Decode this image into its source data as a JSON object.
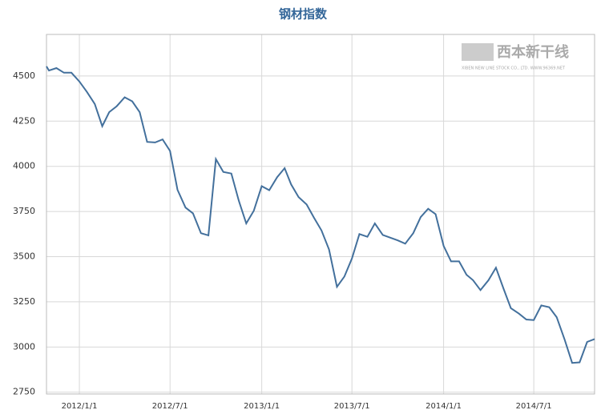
{
  "chart_data": {
    "type": "line",
    "title": "钢材指数",
    "watermark": "西本新干线",
    "watermark_subtitle": "XIBEN NEW LINE STOCK CO., LTD. WWW.96369.NET",
    "x": [
      "2011/10/27",
      "2011/11/1",
      "2011/11/16",
      "2011/12/1",
      "2011/12/16",
      "2012/1/1",
      "2012/1/16",
      "2012/2/1",
      "2012/2/16",
      "2012/3/1",
      "2012/3/16",
      "2012/4/1",
      "2012/4/16",
      "2012/5/1",
      "2012/5/16",
      "2012/6/1",
      "2012/6/16",
      "2012/7/1",
      "2012/7/16",
      "2012/8/1",
      "2012/8/16",
      "2012/9/1",
      "2012/9/16",
      "2012/10/1",
      "2012/10/16",
      "2012/11/1",
      "2012/11/16",
      "2012/12/1",
      "2012/12/16",
      "2013/1/1",
      "2013/1/16",
      "2013/2/1",
      "2013/2/16",
      "2013/3/1",
      "2013/3/16",
      "2013/4/1",
      "2013/4/16",
      "2013/5/1",
      "2013/5/16",
      "2013/6/1",
      "2013/6/16",
      "2013/7/1",
      "2013/7/16",
      "2013/8/1",
      "2013/8/16",
      "2013/9/1",
      "2013/9/16",
      "2013/10/1",
      "2013/10/16",
      "2013/11/1",
      "2013/11/16",
      "2013/12/1",
      "2013/12/16",
      "2014/1/1",
      "2014/1/16",
      "2014/2/1",
      "2014/2/16",
      "2014/3/1",
      "2014/3/16",
      "2014/4/1",
      "2014/4/16",
      "2014/5/1",
      "2014/5/16",
      "2014/6/1",
      "2014/6/16",
      "2014/7/1",
      "2014/7/16",
      "2014/8/1",
      "2014/8/16",
      "2014/9/1",
      "2014/9/16",
      "2014/10/1",
      "2014/10/16",
      "2014/10/31"
    ],
    "series": [
      {
        "name": "钢材指数",
        "color": "#43709c",
        "values": [
          4553,
          4530,
          4544,
          4518,
          4518,
          4470,
          4412,
          4345,
          4222,
          4300,
          4333,
          4382,
          4360,
          4300,
          4135,
          4132,
          4149,
          4085,
          3870,
          3772,
          3740,
          3630,
          3618,
          4040,
          3969,
          3960,
          3810,
          3684,
          3754,
          3890,
          3868,
          3940,
          3990,
          3900,
          3830,
          3789,
          3715,
          3645,
          3540,
          3333,
          3390,
          3490,
          3625,
          3610,
          3684,
          3620,
          3605,
          3590,
          3572,
          3630,
          3719,
          3765,
          3735,
          3560,
          3474,
          3474,
          3400,
          3370,
          3315,
          3370,
          3439,
          3325,
          3215,
          3185,
          3152,
          3149,
          3230,
          3220,
          3165,
          3040,
          2912,
          2915,
          3028,
          3044
        ]
      }
    ],
    "xlim": [
      "2011/10/27",
      "2014/10/31"
    ],
    "xticks": [
      "2012/1/1",
      "2012/7/1",
      "2013/1/1",
      "2013/7/1",
      "2014/1/1",
      "2014/7/1"
    ],
    "ylim": [
      2740,
      4730
    ],
    "yticks": [
      2750,
      3000,
      3250,
      3500,
      3750,
      4000,
      4250,
      4500
    ],
    "grid": true
  }
}
